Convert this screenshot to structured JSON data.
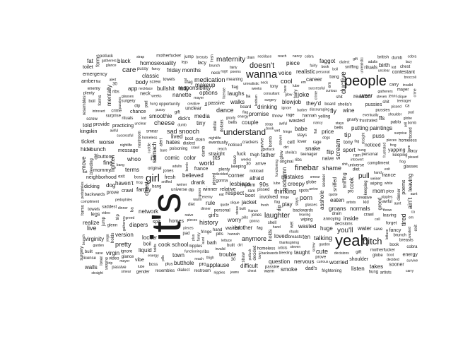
{
  "words": {
    "its": "it's",
    "yeah": "yeah",
    "people": "people",
    "wanna": "wanna",
    "girl": "girl",
    "understand": "understand",
    "doesnt": "doesn't",
    "maternity": "maternity",
    "bitch": "bitch",
    "youll": "you'll",
    "finebar": "finebar",
    "shame": "shame",
    "pull": "pull",
    "laughter": "laughter",
    "care": "care",
    "medication": "medication",
    "dance": "dance",
    "cool": "cool",
    "joke": "joke",
    "fly": "fly",
    "tip": "tip",
    "cheese": "cheese",
    "sadsnooch": "sad snooch",
    "world": "world",
    "terms": "terms",
    "pretty": "pretty",
    "live": "live",
    "realize": "realize",
    "virginity": "virginity",
    "version": "version",
    "history": "history",
    "anymore": "anymore",
    "afraid": "afraid",
    "lesbians": "lesbians",
    "thinking": "thinking",
    "porn": "porn",
    "talking": "talking",
    "wasted": "wasted",
    "cute": "cute",
    "huge": "huge",
    "water": "water",
    "takes": "takes",
    "listen": "listen",
    "mistakes": "mistakes",
    "creepy": "creepy",
    "walks": "walks",
    "promise": "promise",
    "drinking": "drinking",
    "couple": "couple",
    "respect": "respect",
    "jacket": "jacket",
    "trouble": "trouble",
    "applause": "applause",
    "difficult": "difficult",
    "question": "question",
    "nervous": "nervous",
    "inside": "inside",
    "family": "family",
    "network": "network",
    "locker": "locker",
    "cookschool": "cook school",
    "town": "town",
    "liquid": "liquid",
    "virgin": "virgin",
    "vibe": "vibe",
    "classic": "classic",
    "homosexuality": "homosexuality",
    "fridaymonths": "friday months",
    "bullshit": "bullshit",
    "options": "options",
    "laughs": "laughs",
    "father": "father",
    "blowjob": "blowjob",
    "theyd": "they'd",
    "babe": "babe",
    "snake": "snake",
    "price": "price",
    "sport": "sport",
    "wine": "wine",
    "reason": "reason",
    "wear": "wear",
    "birth": "birth",
    "flip": "flip",
    "scream": "scream",
    "putting": "putting",
    "paintings": "paintings",
    "puss": "puss",
    "mom": "mom",
    "cook": "cook",
    "eaten": "eaten",
    "groans": "groans",
    "normals": "normals",
    "ffs": "ffs",
    "aint": "ain't",
    "tired": "tired",
    "leaving": "leaving",
    "goddamn": "goddamn",
    "asshole": "asshole",
    "ductive": "ductive",
    "fat": "fat",
    "black": "black",
    "app": "app",
    "body": "body",
    "told": "told",
    "worse": "worse",
    "ticket": "ticket",
    "bunch": "bunch",
    "hide": "hide",
    "buttons": "buttons",
    "move": "move",
    "lighten": "lighten",
    "mommy": "mommy",
    "fine": "fine",
    "havent": "haven't",
    "spit": "spit",
    "diapers": "diapers",
    "butthole": "butthole",
    "cheat": "cheat",
    "smoothie": "smoothie",
    "hates": "hates",
    "stomach": "stomach",
    "comic": "comic",
    "color": "color",
    "tits": "tits",
    "ill": "i'll",
    "whoo": "whoo",
    "responsibility": "responsibility",
    "makeup": "makeup",
    "media": "media",
    "tiny": "tiny",
    "lived": "lived",
    "believed": "believed",
    "drank": "drank",
    "winner": "winner",
    "relative": "relative",
    "corner": "corner",
    "rule": "rule",
    "waited": "waited",
    "girls": "girl's",
    "worry": "worry",
    "brother": "brother",
    "smoke": "smoke",
    "dads": "dad's",
    "play": "play",
    "loved": "loved",
    "ten": "ten",
    "taught": "taught",
    "worried": "worried",
    "realistic": "realistic",
    "career": "career",
    "piece": "piece",
    "voice": "voice",
    "faggot": "faggot",
    "fuck": "fuck",
    "rhythm": "rhythm",
    "90s": "90s",
    "bath": "bath",
    "walls": "walls",
    "neighborhood": "neighborhood",
    "dicking": "dicking",
    "dog": "dog",
    "crawl": "crawl",
    "toilet": "toilet",
    "emergency": "emergency",
    "amber": "amber",
    "mentally": "mentally",
    "king": "king",
    "skin": "skin",
    "provide": "provide",
    "practicing": "practicing",
    "message": "message",
    "chance": "chance",
    "nanette": "nanette",
    "dicks": "dick's",
    "straight": "straight",
    "homes": "homes",
    "lady": "lady"
  },
  "small_words": [
    "book",
    "pissed",
    "built",
    "rage",
    "eventually",
    "cobra",
    "introvert",
    "keeping",
    "original",
    "backwards",
    "video",
    "reach",
    "thanksgiving",
    "stays",
    "diet",
    "weeks",
    "breasts",
    "30",
    "flat",
    "pussy",
    "pad",
    "dialect",
    "wet",
    "awful",
    "cell",
    "frightening",
    "homeless",
    "crime",
    "sheila's",
    "functioning",
    "compliment",
    "frustrated",
    "fairly",
    "passive",
    "resembles",
    "glance",
    "decided",
    "forms",
    "pro",
    "ignore",
    "pills",
    "sooner",
    "dip",
    "strap",
    "shit",
    "naive",
    "prove",
    "bang",
    "glasses",
    "mayer",
    "hand",
    "jump",
    "pieces",
    "pussies",
    "pedophiles",
    "bomb",
    "artists",
    "smear",
    "noticed",
    "france",
    "chest",
    "dumb",
    "poems",
    "leaving",
    "save",
    "boot",
    "boil",
    "dirt",
    "kid",
    "drain",
    "pissed",
    "gnarly",
    "hannah",
    "ribs",
    "lettuce",
    "personal",
    "consultant",
    "gatherers",
    "surprise",
    "discouraging",
    "shoulder",
    "straight",
    "fresh",
    "neck",
    "adults",
    "nipples",
    "bleeding",
    "sniffing",
    "throw",
    "weiner",
    "successful",
    "motherfucker",
    "yapping",
    "white",
    "opportunity",
    "survive",
    "crackers",
    "contestant",
    "ca",
    "exit",
    "plus",
    "fancy",
    "alert",
    "involved",
    "nancy",
    "british",
    "poisoning",
    "restroom",
    "globe",
    "forget",
    "surgery",
    "lube",
    "board",
    "em",
    "gonna",
    "license",
    "sniffed",
    "thigh",
    "hung",
    "aunt",
    "flag",
    "fringe",
    "universe",
    "meaning",
    "cuddle",
    "pablo",
    "unclear",
    "gender",
    "creative",
    "saddest",
    "unrealistic",
    "necklace",
    "garden",
    "broccoli",
    "nightlife",
    "yelling",
    "lacy",
    "tony",
    "frog",
    "bare",
    "screw",
    "jones",
    "trip",
    "glenn",
    "dogs",
    "crawl",
    "jeans",
    "pico",
    "yoga",
    "greed",
    "quote",
    "bells",
    "lesbian",
    "wasted",
    "wiping",
    "ba",
    "warm",
    "gift",
    "glow",
    "eat",
    "annoying",
    "teenager",
    "potluck",
    "decisions",
    "lover",
    "towels",
    "ram",
    "dinner",
    "legs",
    "boss",
    "steven",
    "brunch",
    "dollars",
    "arrive",
    "invalid",
    "carry",
    "curious",
    "fag",
    "straw",
    "rituals",
    "barber",
    "clique",
    "holds",
    "spots",
    "shell",
    "energy",
    "enemy",
    "plenty"
  ]
}
